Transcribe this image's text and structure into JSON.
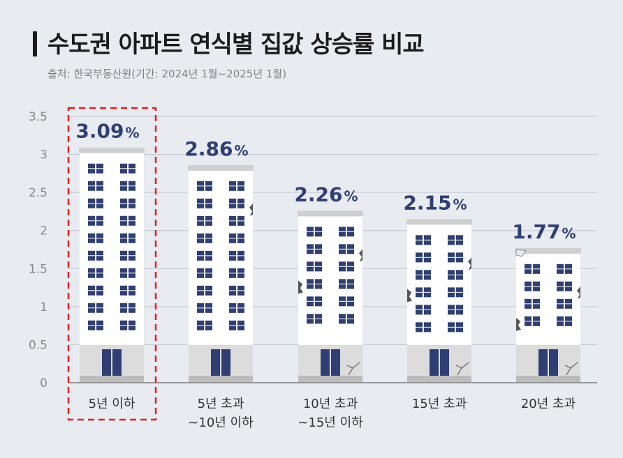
{
  "header": {
    "title": "수도권 아파트 연식별 집값 상승률 비교",
    "source": "출처: 한국부동산원(기간: 2024년 1월~2025년 1월)"
  },
  "chart_data": {
    "type": "bar",
    "title": "수도권 아파트 연식별 집값 상승률 비교",
    "categories": [
      "5년 이하",
      "5년 초과 ~10년 이하",
      "10년 초과 ~15년 이하",
      "15년 초과",
      "20년 초과"
    ],
    "category_lines": [
      [
        "5년 이하"
      ],
      [
        "5년 초과",
        "~10년 이하"
      ],
      [
        "10년 초과",
        "~15년 이하"
      ],
      [
        "15년 초과"
      ],
      [
        "20년 초과"
      ]
    ],
    "values": [
      3.09,
      2.86,
      2.26,
      2.15,
      1.77
    ],
    "value_labels": [
      "3.09",
      "2.86",
      "2.26",
      "2.15",
      "1.77"
    ],
    "value_unit": "%",
    "y_ticks": [
      "0",
      "0.5",
      "1",
      "1.5",
      "2",
      "2.5",
      "3",
      "3.5"
    ],
    "ylim": [
      0,
      3.5
    ],
    "grid": true,
    "highlighted_category": "5년 이하",
    "colors": {
      "building_body": "#ffffff",
      "roof": "#cfcfcf",
      "ground_floor": "#dcdcdc",
      "window": "#2f3f73",
      "value_text": "#2f3f73",
      "highlight_border": "#e02020",
      "grid": "#c2c6cc"
    }
  }
}
